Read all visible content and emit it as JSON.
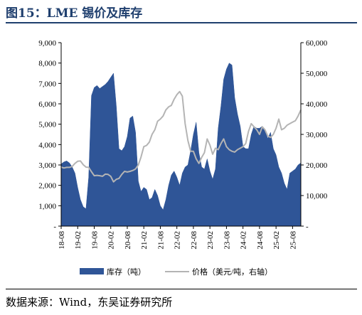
{
  "figure": {
    "title": "图15：LME 锡价及库存",
    "source": "数据来源：Wind，东吴证券研究所"
  },
  "colors": {
    "title": "#1f3f6e",
    "inventory_fill": "#2f5597",
    "price_line": "#b4b4b4"
  },
  "chart_data": {
    "type": "area",
    "title": "",
    "xlabel": "",
    "ylabel": "",
    "y_left": {
      "min": 0,
      "max": 9000,
      "ticks": [
        "9,000",
        "8,000",
        "7,000",
        "6,000",
        "5,000",
        "4,000",
        "3,000",
        "2,000",
        "1,000",
        "-"
      ]
    },
    "y_right": {
      "min": 0,
      "max": 60000,
      "ticks": [
        "60,000",
        "50,000",
        "40,000",
        "30,000",
        "20,000",
        "10,000",
        "-"
      ]
    },
    "x_ticks": [
      "18-08",
      "19-02",
      "19-08",
      "20-02",
      "20-08",
      "21-02",
      "21-08",
      "22-02",
      "22-08",
      "23-02",
      "23-08",
      "24-02",
      "24-08",
      "25-02",
      "25-08"
    ],
    "x_range": [
      "2018-08",
      "2025-11"
    ],
    "grid": false,
    "legend_position": "bottom",
    "series": [
      {
        "name": "库存（吨）",
        "type": "area",
        "axis": "left",
        "points": [
          [
            "2018-08",
            3050
          ],
          [
            "2018-09",
            3150
          ],
          [
            "2018-10",
            3200
          ],
          [
            "2018-11",
            3100
          ],
          [
            "2018-12",
            2900
          ],
          [
            "2019-01",
            2600
          ],
          [
            "2019-02",
            1900
          ],
          [
            "2019-03",
            1300
          ],
          [
            "2019-04",
            950
          ],
          [
            "2019-05",
            850
          ],
          [
            "2019-06",
            2400
          ],
          [
            "2019-07",
            6400
          ],
          [
            "2019-08",
            6800
          ],
          [
            "2019-09",
            6900
          ],
          [
            "2019-10",
            6750
          ],
          [
            "2019-11",
            6850
          ],
          [
            "2019-12",
            6950
          ],
          [
            "2020-01",
            7100
          ],
          [
            "2020-02",
            7300
          ],
          [
            "2020-03",
            7500
          ],
          [
            "2020-04",
            5900
          ],
          [
            "2020-05",
            3800
          ],
          [
            "2020-06",
            3700
          ],
          [
            "2020-07",
            3900
          ],
          [
            "2020-08",
            4400
          ],
          [
            "2020-09",
            5300
          ],
          [
            "2020-10",
            5400
          ],
          [
            "2020-11",
            4600
          ],
          [
            "2020-12",
            2200
          ],
          [
            "2021-01",
            1700
          ],
          [
            "2021-02",
            1900
          ],
          [
            "2021-03",
            1800
          ],
          [
            "2021-04",
            1300
          ],
          [
            "2021-05",
            1400
          ],
          [
            "2021-06",
            1800
          ],
          [
            "2021-07",
            1500
          ],
          [
            "2021-08",
            1000
          ],
          [
            "2021-09",
            800
          ],
          [
            "2021-10",
            1300
          ],
          [
            "2021-11",
            2000
          ],
          [
            "2021-12",
            2500
          ],
          [
            "2022-01",
            2700
          ],
          [
            "2022-02",
            2400
          ],
          [
            "2022-03",
            2000
          ],
          [
            "2022-04",
            2600
          ],
          [
            "2022-05",
            2900
          ],
          [
            "2022-06",
            3000
          ],
          [
            "2022-07",
            3700
          ],
          [
            "2022-08",
            4500
          ],
          [
            "2022-09",
            5100
          ],
          [
            "2022-10",
            3600
          ],
          [
            "2022-11",
            2900
          ],
          [
            "2022-12",
            2800
          ],
          [
            "2023-01",
            3300
          ],
          [
            "2023-02",
            2700
          ],
          [
            "2023-03",
            2300
          ],
          [
            "2023-04",
            2800
          ],
          [
            "2023-05",
            4800
          ],
          [
            "2023-06",
            5900
          ],
          [
            "2023-07",
            7200
          ],
          [
            "2023-08",
            7700
          ],
          [
            "2023-09",
            8000
          ],
          [
            "2023-10",
            7900
          ],
          [
            "2023-11",
            6300
          ],
          [
            "2023-12",
            5500
          ],
          [
            "2024-01",
            4900
          ],
          [
            "2024-02",
            3900
          ],
          [
            "2024-03",
            3800
          ],
          [
            "2024-04",
            3800
          ],
          [
            "2024-05",
            4500
          ],
          [
            "2024-06",
            4900
          ],
          [
            "2024-07",
            4800
          ],
          [
            "2024-08",
            4800
          ],
          [
            "2024-09",
            4900
          ],
          [
            "2024-10",
            4700
          ],
          [
            "2024-11",
            4300
          ],
          [
            "2024-12",
            4600
          ],
          [
            "2025-01",
            3800
          ],
          [
            "2025-02",
            3500
          ],
          [
            "2025-03",
            2900
          ],
          [
            "2025-04",
            2600
          ],
          [
            "2025-05",
            2100
          ],
          [
            "2025-06",
            1800
          ],
          [
            "2025-07",
            2600
          ],
          [
            "2025-08",
            2700
          ],
          [
            "2025-09",
            2800
          ],
          [
            "2025-10",
            3000
          ],
          [
            "2025-11",
            3100
          ]
        ]
      },
      {
        "name": "价格（美元/吨，右轴）",
        "type": "line",
        "axis": "right",
        "points": [
          [
            "2018-08",
            19300
          ],
          [
            "2018-09",
            19000
          ],
          [
            "2018-10",
            19200
          ],
          [
            "2018-11",
            19200
          ],
          [
            "2018-12",
            19500
          ],
          [
            "2019-01",
            20500
          ],
          [
            "2019-02",
            21200
          ],
          [
            "2019-03",
            21300
          ],
          [
            "2019-04",
            20100
          ],
          [
            "2019-05",
            19300
          ],
          [
            "2019-06",
            19200
          ],
          [
            "2019-07",
            17800
          ],
          [
            "2019-08",
            16500
          ],
          [
            "2019-09",
            16600
          ],
          [
            "2019-10",
            16500
          ],
          [
            "2019-11",
            16300
          ],
          [
            "2019-12",
            17000
          ],
          [
            "2020-01",
            16900
          ],
          [
            "2020-02",
            16300
          ],
          [
            "2020-03",
            14500
          ],
          [
            "2020-04",
            15300
          ],
          [
            "2020-05",
            15600
          ],
          [
            "2020-06",
            16900
          ],
          [
            "2020-07",
            17900
          ],
          [
            "2020-08",
            17700
          ],
          [
            "2020-09",
            17900
          ],
          [
            "2020-10",
            18200
          ],
          [
            "2020-11",
            18700
          ],
          [
            "2020-12",
            20000
          ],
          [
            "2021-01",
            22600
          ],
          [
            "2021-02",
            26000
          ],
          [
            "2021-03",
            26400
          ],
          [
            "2021-04",
            27500
          ],
          [
            "2021-05",
            30000
          ],
          [
            "2021-06",
            31500
          ],
          [
            "2021-07",
            34300
          ],
          [
            "2021-08",
            35000
          ],
          [
            "2021-09",
            36000
          ],
          [
            "2021-10",
            38000
          ],
          [
            "2021-11",
            39000
          ],
          [
            "2021-12",
            39500
          ],
          [
            "2022-01",
            41500
          ],
          [
            "2022-02",
            43000
          ],
          [
            "2022-03",
            44000
          ],
          [
            "2022-04",
            42500
          ],
          [
            "2022-05",
            33500
          ],
          [
            "2022-06",
            28000
          ],
          [
            "2022-07",
            24500
          ],
          [
            "2022-08",
            24500
          ],
          [
            "2022-09",
            22000
          ],
          [
            "2022-10",
            20500
          ],
          [
            "2022-11",
            22500
          ],
          [
            "2022-12",
            24000
          ],
          [
            "2023-01",
            28500
          ],
          [
            "2023-02",
            26500
          ],
          [
            "2023-03",
            23500
          ],
          [
            "2023-04",
            25500
          ],
          [
            "2023-05",
            25000
          ],
          [
            "2023-06",
            27000
          ],
          [
            "2023-07",
            28500
          ],
          [
            "2023-08",
            26000
          ],
          [
            "2023-09",
            25000
          ],
          [
            "2023-10",
            24500
          ],
          [
            "2023-11",
            24200
          ],
          [
            "2023-12",
            25000
          ],
          [
            "2024-01",
            25500
          ],
          [
            "2024-02",
            26000
          ],
          [
            "2024-03",
            27000
          ],
          [
            "2024-04",
            31000
          ],
          [
            "2024-05",
            33500
          ],
          [
            "2024-06",
            32500
          ],
          [
            "2024-07",
            31500
          ],
          [
            "2024-08",
            30000
          ],
          [
            "2024-09",
            32500
          ],
          [
            "2024-10",
            31500
          ],
          [
            "2024-11",
            29500
          ],
          [
            "2024-12",
            29000
          ],
          [
            "2025-01",
            30000
          ],
          [
            "2025-02",
            32000
          ],
          [
            "2025-03",
            35000
          ],
          [
            "2025-04",
            31500
          ],
          [
            "2025-05",
            32000
          ],
          [
            "2025-06",
            33000
          ],
          [
            "2025-07",
            33500
          ],
          [
            "2025-08",
            34000
          ],
          [
            "2025-09",
            34500
          ],
          [
            "2025-10",
            36000
          ],
          [
            "2025-11",
            38000
          ]
        ]
      }
    ]
  }
}
